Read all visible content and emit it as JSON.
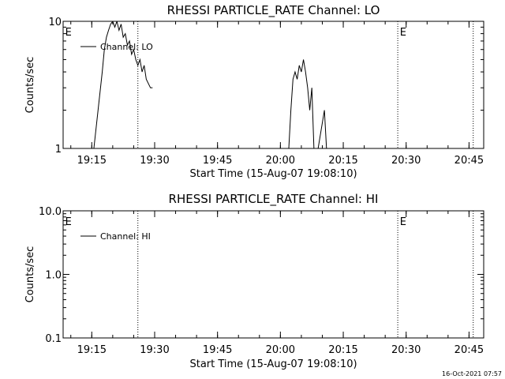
{
  "chart_data": [
    {
      "type": "line",
      "title": "RHESSI PARTICLE_RATE Channel: LO",
      "xlabel": "Start Time (15-Aug-07 19:08:10)",
      "ylabel": "Counts/sec",
      "yscale": "log",
      "ylim": [
        1,
        10
      ],
      "ytick_labels": [
        "1",
        "10"
      ],
      "xlim": [
        "19:08:10",
        "20:48:30"
      ],
      "xtick_labels": [
        "19:15",
        "19:30",
        "19:45",
        "20:00",
        "20:15",
        "20:30",
        "20:45"
      ],
      "legend": "top-left",
      "series": [
        {
          "name": "Channel: LO",
          "x": [
            "19:15:30",
            "19:16:30",
            "19:17:30",
            "19:18:00",
            "19:18:30",
            "19:19:00",
            "19:19:30",
            "19:20:00",
            "19:20:30",
            "19:21:00",
            "19:21:30",
            "19:22:00",
            "19:22:30",
            "19:23:00",
            "19:23:30",
            "19:24:00",
            "19:24:30",
            "19:25:00",
            "19:25:30",
            "19:26:00",
            "19:26:30",
            "19:27:00",
            "19:27:30",
            "19:28:00",
            "19:29:00",
            "19:29:30",
            "20:02:00",
            "20:02:30",
            "20:03:00",
            "20:03:30",
            "20:04:00",
            "20:04:30",
            "20:05:00",
            "20:05:30",
            "20:06:00",
            "20:06:30",
            "20:07:00",
            "20:07:30",
            "20:08:00",
            "20:09:00",
            "20:10:30",
            "20:11:00"
          ],
          "values": [
            1.0,
            2.0,
            4.0,
            6.0,
            7.5,
            8.5,
            9.5,
            10.0,
            9.0,
            10.0,
            8.5,
            9.5,
            7.5,
            8.0,
            6.5,
            7.0,
            5.5,
            6.0,
            5.0,
            4.5,
            5.0,
            4.0,
            4.5,
            3.5,
            3.0,
            3.0,
            1.0,
            2.0,
            3.5,
            4.0,
            3.5,
            4.5,
            4.0,
            5.0,
            4.0,
            3.0,
            2.0,
            3.0,
            1.0,
            1.0,
            2.0,
            1.0
          ]
        }
      ],
      "annotations": [
        {
          "text": "E",
          "x": "19:08:40"
        },
        {
          "text": "E",
          "x": "20:28:30"
        }
      ],
      "vlines": [
        "19:26:00",
        "20:28:00",
        "20:46:00"
      ]
    },
    {
      "type": "line",
      "title": "RHESSI PARTICLE_RATE Channel: HI",
      "xlabel": "Start Time (15-Aug-07 19:08:10)",
      "ylabel": "Counts/sec",
      "yscale": "log",
      "ylim": [
        0.1,
        10
      ],
      "ytick_labels": [
        "0.1",
        "1.0",
        "10.0"
      ],
      "xlim": [
        "19:08:10",
        "20:48:30"
      ],
      "xtick_labels": [
        "19:15",
        "19:30",
        "19:45",
        "20:00",
        "20:15",
        "20:30",
        "20:45"
      ],
      "legend": "top-left",
      "series": [
        {
          "name": "Channel: HI",
          "x": [],
          "values": []
        }
      ],
      "annotations": [
        {
          "text": "E",
          "x": "19:08:40"
        },
        {
          "text": "E",
          "x": "20:28:30"
        }
      ],
      "vlines": [
        "19:26:00",
        "20:28:00",
        "20:46:00"
      ]
    }
  ],
  "timestamp": "16-Oct-2021 07:57",
  "colors": {
    "background": "#ffffff",
    "foreground": "#000000"
  }
}
